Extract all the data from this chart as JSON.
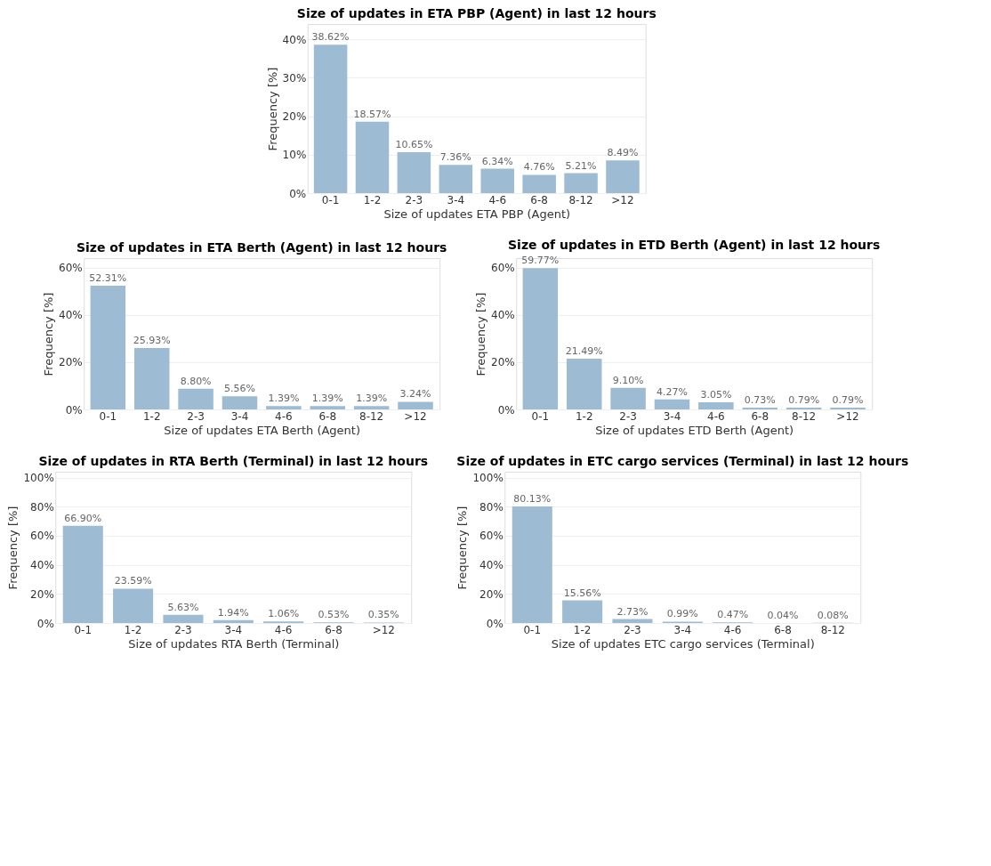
{
  "chart_data": [
    {
      "type": "bar",
      "title": "Size of updates in ETA PBP (Agent) in last 12 hours",
      "xlabel": "Size of updates ETA PBP (Agent)",
      "ylabel": "Frequency [%]",
      "categories": [
        "0-1",
        "1-2",
        "2-3",
        "3-4",
        "4-6",
        "6-8",
        "8-12",
        ">12"
      ],
      "values": [
        38.62,
        18.57,
        10.65,
        7.36,
        6.34,
        4.76,
        5.21,
        8.49
      ],
      "value_labels": [
        "38.62%",
        "18.57%",
        "10.65%",
        "7.36%",
        "6.34%",
        "4.76%",
        "5.21%",
        "8.49%"
      ],
      "color": "#9dbbd3",
      "ylim": [
        0,
        44
      ],
      "yticks": [
        {
          "value": 0,
          "label": "0%"
        },
        {
          "value": 10,
          "label": "10%"
        },
        {
          "value": 20,
          "label": "20%"
        },
        {
          "value": 30,
          "label": "30%"
        },
        {
          "value": 40,
          "label": "40%"
        }
      ],
      "grid": "y"
    },
    {
      "type": "bar",
      "title": "Size of updates in ETA Berth (Agent) in last 12 hours",
      "xlabel": "Size of updates ETA Berth (Agent)",
      "ylabel": "Frequency [%]",
      "categories": [
        "0-1",
        "1-2",
        "2-3",
        "3-4",
        "4-6",
        "6-8",
        "8-12",
        ">12"
      ],
      "values": [
        52.31,
        25.93,
        8.8,
        5.56,
        1.39,
        1.39,
        1.39,
        3.24
      ],
      "value_labels": [
        "52.31%",
        "25.93%",
        "8.80%",
        "5.56%",
        "1.39%",
        "1.39%",
        "1.39%",
        "3.24%"
      ],
      "color": "#9dbbd3",
      "ylim": [
        0,
        64
      ],
      "yticks": [
        {
          "value": 0,
          "label": "0%"
        },
        {
          "value": 20,
          "label": "20%"
        },
        {
          "value": 40,
          "label": "40%"
        },
        {
          "value": 60,
          "label": "60%"
        }
      ],
      "grid": "y"
    },
    {
      "type": "bar",
      "title": "Size of updates in ETD Berth (Agent) in last 12 hours",
      "xlabel": "Size of updates ETD Berth (Agent)",
      "ylabel": "Frequency [%]",
      "categories": [
        "0-1",
        "1-2",
        "2-3",
        "3-4",
        "4-6",
        "6-8",
        "8-12",
        ">12"
      ],
      "values": [
        59.77,
        21.49,
        9.1,
        4.27,
        3.05,
        0.73,
        0.79,
        0.79
      ],
      "value_labels": [
        "59.77%",
        "21.49%",
        "9.10%",
        "4.27%",
        "3.05%",
        "0.73%",
        "0.79%",
        "0.79%"
      ],
      "color": "#9dbbd3",
      "ylim": [
        0,
        64
      ],
      "yticks": [
        {
          "value": 0,
          "label": "0%"
        },
        {
          "value": 20,
          "label": "20%"
        },
        {
          "value": 40,
          "label": "40%"
        },
        {
          "value": 60,
          "label": "60%"
        }
      ],
      "grid": "y"
    },
    {
      "type": "bar",
      "title": "Size of updates in RTA Berth (Terminal) in last 12 hours",
      "xlabel": "Size of updates RTA Berth (Terminal)",
      "ylabel": "Frequency [%]",
      "categories": [
        "0-1",
        "1-2",
        "2-3",
        "3-4",
        "4-6",
        "6-8",
        ">12"
      ],
      "values": [
        66.9,
        23.59,
        5.63,
        1.94,
        1.06,
        0.53,
        0.35
      ],
      "value_labels": [
        "66.90%",
        "23.59%",
        "5.63%",
        "1.94%",
        "1.06%",
        "0.53%",
        "0.35%"
      ],
      "color": "#9dbbd3",
      "ylim": [
        0,
        104
      ],
      "yticks": [
        {
          "value": 0,
          "label": "0%"
        },
        {
          "value": 20,
          "label": "20%"
        },
        {
          "value": 40,
          "label": "40%"
        },
        {
          "value": 60,
          "label": "60%"
        },
        {
          "value": 80,
          "label": "80%"
        },
        {
          "value": 100,
          "label": "100%"
        }
      ],
      "grid": "y"
    },
    {
      "type": "bar",
      "title": "Size of updates in ETC cargo services (Terminal) in last 12 hours",
      "xlabel": "Size of updates ETC cargo services (Terminal)",
      "ylabel": "Frequency [%]",
      "categories": [
        "0-1",
        "1-2",
        "2-3",
        "3-4",
        "4-6",
        "6-8",
        "8-12"
      ],
      "values": [
        80.13,
        15.56,
        2.73,
        0.99,
        0.47,
        0.04,
        0.08
      ],
      "value_labels": [
        "80.13%",
        "15.56%",
        "2.73%",
        "0.99%",
        "0.47%",
        "0.04%",
        "0.08%"
      ],
      "color": "#9dbbd3",
      "ylim": [
        0,
        104
      ],
      "yticks": [
        {
          "value": 0,
          "label": "0%"
        },
        {
          "value": 20,
          "label": "20%"
        },
        {
          "value": 40,
          "label": "40%"
        },
        {
          "value": 60,
          "label": "60%"
        },
        {
          "value": 80,
          "label": "80%"
        },
        {
          "value": 100,
          "label": "100%"
        }
      ],
      "grid": "y"
    }
  ]
}
